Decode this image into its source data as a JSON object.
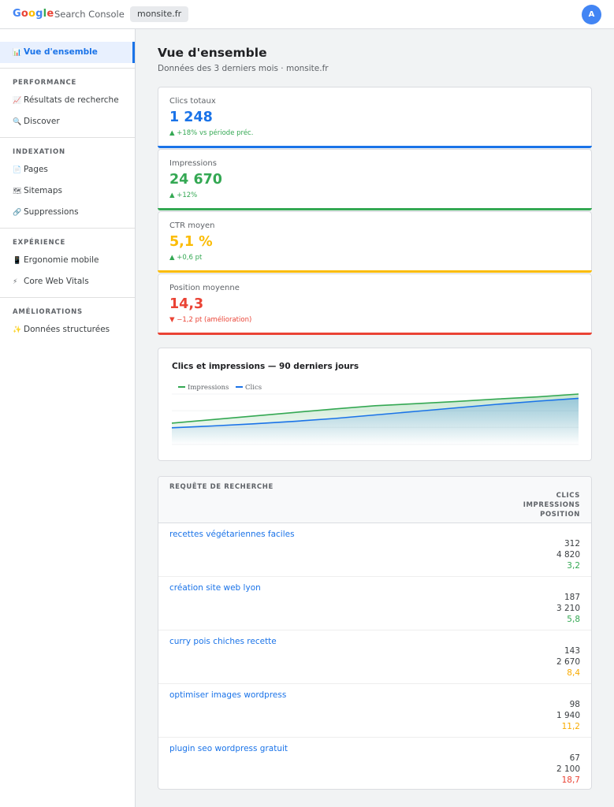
{
  "header": {
    "logo_letters": [
      {
        "char": "G",
        "color": "#4285f4"
      },
      {
        "char": "o",
        "color": "#ea4335"
      },
      {
        "char": "o",
        "color": "#fbbc05"
      },
      {
        "char": "g",
        "color": "#4285f4"
      },
      {
        "char": "l",
        "color": "#34a853"
      },
      {
        "char": "e",
        "color": "#ea4335"
      }
    ],
    "product": "Search Console",
    "site": "monsite.fr",
    "avatar": "A"
  },
  "sidebar": {
    "overview": {
      "icon": "bar-chart-icon",
      "glyph": "📊",
      "label": "Vue d'ensemble"
    },
    "sections": [
      {
        "title": "PERFORMANCE",
        "items": [
          {
            "icon": "line-chart-icon",
            "glyph": "📈",
            "label": "Résultats de recherche"
          },
          {
            "icon": "search-icon",
            "glyph": "🔍",
            "label": "Discover"
          }
        ]
      },
      {
        "title": "INDEXATION",
        "items": [
          {
            "icon": "page-icon",
            "glyph": "📄",
            "label": "Pages"
          },
          {
            "icon": "map-icon",
            "glyph": "🗺",
            "label": "Sitemaps"
          },
          {
            "icon": "link-icon",
            "glyph": "🔗",
            "label": "Suppressions"
          }
        ]
      },
      {
        "title": "EXPÉRIENCE",
        "items": [
          {
            "icon": "mobile-icon",
            "glyph": "📱",
            "label": "Ergonomie mobile"
          },
          {
            "icon": "lightning-icon",
            "glyph": "⚡",
            "label": "Core Web Vitals"
          }
        ]
      },
      {
        "title": "AMÉLIORATIONS",
        "items": [
          {
            "icon": "sparkle-icon",
            "glyph": "✨",
            "label": "Données structurées"
          }
        ]
      }
    ]
  },
  "main": {
    "title": "Vue d'ensemble",
    "subtitle": "Données des 3 derniers mois · monsite.fr"
  },
  "metrics": [
    {
      "label": "Clics totaux",
      "value": "1 248",
      "delta": "▲ +18% vs période préc.",
      "color": "#1a73e8",
      "delta_color": "#34a853"
    },
    {
      "label": "Impressions",
      "value": "24 670",
      "delta": "▲ +12%",
      "color": "#34a853",
      "delta_color": "#34a853"
    },
    {
      "label": "CTR moyen",
      "value": "5,1 %",
      "delta": "▲ +0,6 pt",
      "color": "#fbbc05",
      "delta_color": "#34a853"
    },
    {
      "label": "Position moyenne",
      "value": "14,3",
      "delta": "▼ −1,2 pt (amélioration)",
      "color": "#ea4335",
      "delta_color": "#ea4335"
    }
  ],
  "chart_data": {
    "type": "area",
    "title": "Clics et impressions — 90 derniers jours",
    "legend": "top-left",
    "grid": true,
    "series": [
      {
        "name": "Impressions",
        "color": "#34a853",
        "values": [
          0.18,
          0.28,
          0.38,
          0.48,
          0.58,
          0.67,
          0.73,
          0.79,
          0.86,
          0.92,
          1.0
        ]
      },
      {
        "name": "Clics",
        "color": "#1a73e8",
        "values": [
          0.05,
          0.1,
          0.16,
          0.23,
          0.31,
          0.41,
          0.51,
          0.61,
          0.71,
          0.8,
          0.88
        ]
      }
    ]
  },
  "table": {
    "headers": {
      "query": "REQUÊTE DE RECHERCHE",
      "clicks": "CLICS",
      "impressions": "IMPRESSIONS",
      "position": "POSITION"
    },
    "rows": [
      {
        "query": "recettes végétariennes faciles",
        "clicks": "312",
        "impressions": "4 820",
        "position": "3,2",
        "pos_color": "#34a853"
      },
      {
        "query": "création site web lyon",
        "clicks": "187",
        "impressions": "3 210",
        "position": "5,8",
        "pos_color": "#34a853"
      },
      {
        "query": "curry pois chiches recette",
        "clicks": "143",
        "impressions": "2 670",
        "position": "8,4",
        "pos_color": "#f9ab00"
      },
      {
        "query": "optimiser images wordpress",
        "clicks": "98",
        "impressions": "1 940",
        "position": "11,2",
        "pos_color": "#f9ab00"
      },
      {
        "query": "plugin seo wordpress gratuit",
        "clicks": "67",
        "impressions": "2 100",
        "position": "18,7",
        "pos_color": "#ea4335"
      }
    ]
  }
}
